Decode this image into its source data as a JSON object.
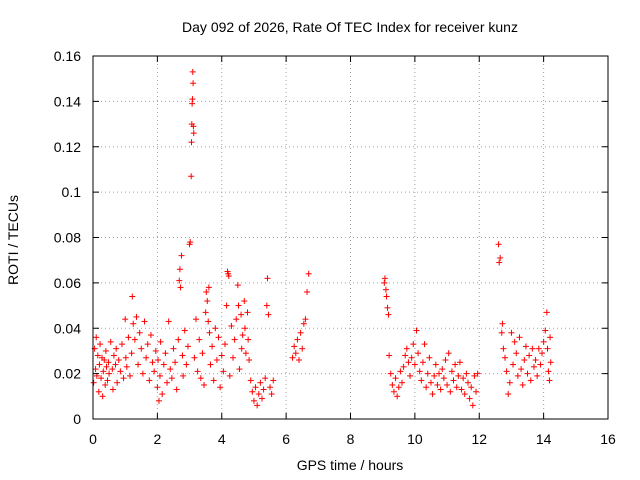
{
  "chart_data": {
    "type": "scatter",
    "title": "Day 092 of 2026, Rate Of TEC Index for receiver kunz",
    "xlabel": "GPS time / hours",
    "ylabel": "ROTI / TECUs",
    "xlim": [
      0,
      16
    ],
    "ylim": [
      0,
      0.16
    ],
    "xticks": [
      "0",
      "2",
      "4",
      "6",
      "8",
      "10",
      "12",
      "14",
      "16"
    ],
    "yticks": [
      "0",
      "0.02",
      "0.04",
      "0.06",
      "0.08",
      "0.1",
      "0.12",
      "0.14",
      "0.16"
    ],
    "grid": true,
    "marker": "+",
    "color": "#ff0000",
    "series": [
      {
        "points": [
          [
            0.02,
            0.016
          ],
          [
            0.05,
            0.031
          ],
          [
            0.08,
            0.022
          ],
          [
            0.1,
            0.036
          ],
          [
            0.12,
            0.019
          ],
          [
            0.15,
            0.028
          ],
          [
            0.18,
            0.012
          ],
          [
            0.2,
            0.024
          ],
          [
            0.22,
            0.033
          ],
          [
            0.25,
            0.018
          ],
          [
            0.28,
            0.027
          ],
          [
            0.3,
            0.01
          ],
          [
            0.32,
            0.021
          ],
          [
            0.35,
            0.026
          ],
          [
            0.38,
            0.015
          ],
          [
            0.4,
            0.03
          ],
          [
            0.42,
            0.023
          ],
          [
            0.45,
            0.017
          ],
          [
            0.48,
            0.025
          ],
          [
            0.5,
            0.02
          ],
          [
            0.55,
            0.034
          ],
          [
            0.6,
            0.022
          ],
          [
            0.62,
            0.013
          ],
          [
            0.65,
            0.028
          ],
          [
            0.7,
            0.024
          ],
          [
            0.72,
            0.031
          ],
          [
            0.75,
            0.016
          ],
          [
            0.8,
            0.026
          ],
          [
            0.85,
            0.021
          ],
          [
            0.9,
            0.033
          ],
          [
            0.95,
            0.018
          ],
          [
            1.0,
            0.044
          ],
          [
            1.02,
            0.027
          ],
          [
            1.05,
            0.023
          ],
          [
            1.1,
            0.036
          ],
          [
            1.15,
            0.019
          ],
          [
            1.2,
            0.029
          ],
          [
            1.22,
            0.054
          ],
          [
            1.25,
            0.042
          ],
          [
            1.3,
            0.035
          ],
          [
            1.35,
            0.045
          ],
          [
            1.4,
            0.024
          ],
          [
            1.45,
            0.038
          ],
          [
            1.5,
            0.031
          ],
          [
            1.55,
            0.02
          ],
          [
            1.6,
            0.043
          ],
          [
            1.65,
            0.027
          ],
          [
            1.7,
            0.033
          ],
          [
            1.75,
            0.017
          ],
          [
            1.8,
            0.037
          ],
          [
            1.85,
            0.025
          ],
          [
            1.9,
            0.021
          ],
          [
            1.95,
            0.03
          ],
          [
            2.0,
            0.014
          ],
          [
            2.02,
            0.026
          ],
          [
            2.05,
            0.008
          ],
          [
            2.08,
            0.019
          ],
          [
            2.1,
            0.034
          ],
          [
            2.15,
            0.011
          ],
          [
            2.2,
            0.024
          ],
          [
            2.25,
            0.029
          ],
          [
            2.3,
            0.016
          ],
          [
            2.35,
            0.043
          ],
          [
            2.4,
            0.022
          ],
          [
            2.45,
            0.018
          ],
          [
            2.5,
            0.031
          ],
          [
            2.55,
            0.025
          ],
          [
            2.6,
            0.013
          ],
          [
            2.65,
            0.035
          ],
          [
            2.68,
            0.061
          ],
          [
            2.7,
            0.066
          ],
          [
            2.72,
            0.058
          ],
          [
            2.75,
            0.072
          ],
          [
            2.78,
            0.028
          ],
          [
            2.8,
            0.019
          ],
          [
            2.85,
            0.039
          ],
          [
            2.9,
            0.024
          ],
          [
            2.95,
            0.032
          ],
          [
            3.0,
            0.077
          ],
          [
            3.02,
            0.078
          ],
          [
            3.05,
            0.107
          ],
          [
            3.06,
            0.122
          ],
          [
            3.07,
            0.13
          ],
          [
            3.08,
            0.139
          ],
          [
            3.09,
            0.141
          ],
          [
            3.1,
            0.153
          ],
          [
            3.11,
            0.148
          ],
          [
            3.12,
            0.129
          ],
          [
            3.13,
            0.126
          ],
          [
            3.15,
            0.027
          ],
          [
            3.2,
            0.044
          ],
          [
            3.25,
            0.021
          ],
          [
            3.3,
            0.035
          ],
          [
            3.35,
            0.018
          ],
          [
            3.4,
            0.029
          ],
          [
            3.45,
            0.015
          ],
          [
            3.5,
            0.047
          ],
          [
            3.52,
            0.056
          ],
          [
            3.55,
            0.052
          ],
          [
            3.58,
            0.043
          ],
          [
            3.6,
            0.058
          ],
          [
            3.62,
            0.038
          ],
          [
            3.65,
            0.024
          ],
          [
            3.7,
            0.032
          ],
          [
            3.75,
            0.017
          ],
          [
            3.8,
            0.04
          ],
          [
            3.85,
            0.026
          ],
          [
            3.9,
            0.036
          ],
          [
            3.95,
            0.014
          ],
          [
            4.0,
            0.028
          ],
          [
            4.05,
            0.021
          ],
          [
            4.1,
            0.033
          ],
          [
            4.15,
            0.05
          ],
          [
            4.18,
            0.065
          ],
          [
            4.2,
            0.064
          ],
          [
            4.22,
            0.063
          ],
          [
            4.25,
            0.019
          ],
          [
            4.3,
            0.041
          ],
          [
            4.35,
            0.027
          ],
          [
            4.4,
            0.035
          ],
          [
            4.45,
            0.044
          ],
          [
            4.5,
            0.059
          ],
          [
            4.52,
            0.05
          ],
          [
            4.55,
            0.022
          ],
          [
            4.6,
            0.046
          ],
          [
            4.62,
            0.031
          ],
          [
            4.65,
            0.037
          ],
          [
            4.7,
            0.052
          ],
          [
            4.72,
            0.04
          ],
          [
            4.75,
            0.029
          ],
          [
            4.8,
            0.047
          ],
          [
            4.82,
            0.035
          ],
          [
            4.85,
            0.026
          ],
          [
            4.9,
            0.017
          ],
          [
            4.95,
            0.012
          ],
          [
            5.0,
            0.008
          ],
          [
            5.05,
            0.014
          ],
          [
            5.1,
            0.006
          ],
          [
            5.15,
            0.011
          ],
          [
            5.2,
            0.016
          ],
          [
            5.25,
            0.009
          ],
          [
            5.3,
            0.013
          ],
          [
            5.35,
            0.018
          ],
          [
            5.4,
            0.05
          ],
          [
            5.42,
            0.062
          ],
          [
            5.45,
            0.046
          ],
          [
            5.5,
            0.014
          ],
          [
            5.55,
            0.011
          ],
          [
            5.6,
            0.017
          ],
          [
            6.2,
            0.027
          ],
          [
            6.25,
            0.032
          ],
          [
            6.3,
            0.029
          ],
          [
            6.35,
            0.035
          ],
          [
            6.4,
            0.026
          ],
          [
            6.45,
            0.038
          ],
          [
            6.5,
            0.031
          ],
          [
            6.55,
            0.042
          ],
          [
            6.6,
            0.044
          ],
          [
            6.65,
            0.056
          ],
          [
            6.7,
            0.064
          ],
          [
            9.05,
            0.06
          ],
          [
            9.07,
            0.062
          ],
          [
            9.1,
            0.057
          ],
          [
            9.12,
            0.054
          ],
          [
            9.15,
            0.049
          ],
          [
            9.18,
            0.046
          ],
          [
            9.2,
            0.028
          ],
          [
            9.25,
            0.02
          ],
          [
            9.3,
            0.015
          ],
          [
            9.35,
            0.012
          ],
          [
            9.4,
            0.018
          ],
          [
            9.45,
            0.01
          ],
          [
            9.5,
            0.014
          ],
          [
            9.55,
            0.021
          ],
          [
            9.6,
            0.016
          ],
          [
            9.65,
            0.023
          ],
          [
            9.7,
            0.028
          ],
          [
            9.75,
            0.031
          ],
          [
            9.8,
            0.025
          ],
          [
            9.85,
            0.019
          ],
          [
            9.9,
            0.027
          ],
          [
            9.95,
            0.033
          ],
          [
            10.0,
            0.024
          ],
          [
            10.05,
            0.039
          ],
          [
            10.1,
            0.029
          ],
          [
            10.15,
            0.021
          ],
          [
            10.2,
            0.017
          ],
          [
            10.25,
            0.025
          ],
          [
            10.3,
            0.033
          ],
          [
            10.35,
            0.014
          ],
          [
            10.4,
            0.02
          ],
          [
            10.45,
            0.027
          ],
          [
            10.5,
            0.016
          ],
          [
            10.55,
            0.011
          ],
          [
            10.6,
            0.019
          ],
          [
            10.65,
            0.024
          ],
          [
            10.7,
            0.015
          ],
          [
            10.75,
            0.02
          ],
          [
            10.8,
            0.013
          ],
          [
            10.85,
            0.022
          ],
          [
            10.9,
            0.018
          ],
          [
            10.95,
            0.026
          ],
          [
            11.0,
            0.015
          ],
          [
            11.05,
            0.029
          ],
          [
            11.1,
            0.012
          ],
          [
            11.15,
            0.021
          ],
          [
            11.2,
            0.017
          ],
          [
            11.25,
            0.024
          ],
          [
            11.3,
            0.014
          ],
          [
            11.35,
            0.019
          ],
          [
            11.4,
            0.025
          ],
          [
            11.45,
            0.013
          ],
          [
            11.5,
            0.018
          ],
          [
            11.55,
            0.011
          ],
          [
            11.6,
            0.02
          ],
          [
            11.65,
            0.016
          ],
          [
            11.7,
            0.009
          ],
          [
            11.75,
            0.014
          ],
          [
            11.8,
            0.006
          ],
          [
            11.85,
            0.019
          ],
          [
            11.9,
            0.012
          ],
          [
            11.95,
            0.02
          ],
          [
            12.6,
            0.077
          ],
          [
            12.62,
            0.069
          ],
          [
            12.65,
            0.071
          ],
          [
            12.7,
            0.038
          ],
          [
            12.72,
            0.042
          ],
          [
            12.75,
            0.031
          ],
          [
            12.8,
            0.027
          ],
          [
            12.85,
            0.021
          ],
          [
            12.9,
            0.011
          ],
          [
            12.95,
            0.016
          ],
          [
            13.0,
            0.038
          ],
          [
            13.05,
            0.024
          ],
          [
            13.1,
            0.034
          ],
          [
            13.15,
            0.029
          ],
          [
            13.2,
            0.019
          ],
          [
            13.25,
            0.036
          ],
          [
            13.3,
            0.022
          ],
          [
            13.35,
            0.015
          ],
          [
            13.4,
            0.026
          ],
          [
            13.45,
            0.032
          ],
          [
            13.5,
            0.02
          ],
          [
            13.55,
            0.028
          ],
          [
            13.6,
            0.017
          ],
          [
            13.65,
            0.031
          ],
          [
            13.7,
            0.023
          ],
          [
            13.75,
            0.026
          ],
          [
            13.8,
            0.019
          ],
          [
            13.85,
            0.031
          ],
          [
            13.9,
            0.024
          ],
          [
            13.95,
            0.029
          ],
          [
            14.0,
            0.034
          ],
          [
            14.05,
            0.039
          ],
          [
            14.1,
            0.047
          ],
          [
            14.12,
            0.031
          ],
          [
            14.15,
            0.021
          ],
          [
            14.18,
            0.017
          ],
          [
            14.2,
            0.036
          ],
          [
            14.22,
            0.025
          ]
        ]
      }
    ]
  }
}
